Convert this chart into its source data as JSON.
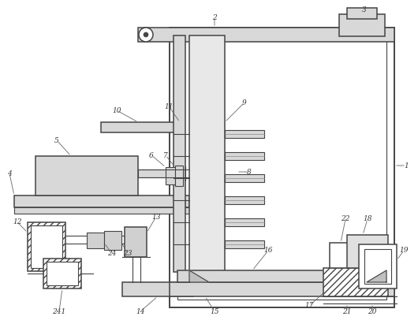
{
  "background_color": "#ffffff",
  "line_color": "#444444",
  "label_color": "#333333",
  "fig_width": 5.3,
  "fig_height": 4.25,
  "dpi": 100
}
